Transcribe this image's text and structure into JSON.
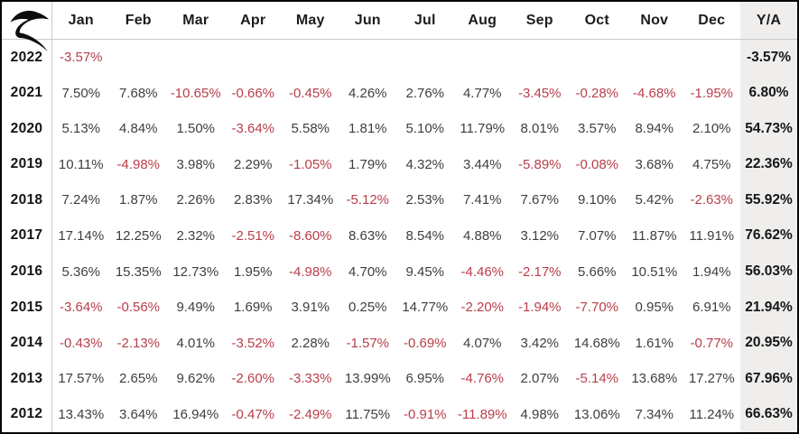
{
  "brand": {
    "logo_icon": "swoosh-r-logo"
  },
  "table": {
    "columns": [
      "Jan",
      "Feb",
      "Mar",
      "Apr",
      "May",
      "Jun",
      "Jul",
      "Aug",
      "Sep",
      "Oct",
      "Nov",
      "Dec"
    ],
    "annual_column": "Y/A",
    "rows": [
      {
        "year": "2022",
        "monthly": [
          "-3.57%",
          "",
          "",
          "",
          "",
          "",
          "",
          "",
          "",
          "",
          "",
          ""
        ],
        "annual": "-3.57%"
      },
      {
        "year": "2021",
        "monthly": [
          "7.50%",
          "7.68%",
          "-10.65%",
          "-0.66%",
          "-0.45%",
          "4.26%",
          "2.76%",
          "4.77%",
          "-3.45%",
          "-0.28%",
          "-4.68%",
          "-1.95%"
        ],
        "annual": "6.80%"
      },
      {
        "year": "2020",
        "monthly": [
          "5.13%",
          "4.84%",
          "1.50%",
          "-3.64%",
          "5.58%",
          "1.81%",
          "5.10%",
          "11.79%",
          "8.01%",
          "3.57%",
          "8.94%",
          "2.10%"
        ],
        "annual": "54.73%"
      },
      {
        "year": "2019",
        "monthly": [
          "10.11%",
          "-4.98%",
          "3.98%",
          "2.29%",
          "-1.05%",
          "1.79%",
          "4.32%",
          "3.44%",
          "-5.89%",
          "-0.08%",
          "3.68%",
          "4.75%"
        ],
        "annual": "22.36%"
      },
      {
        "year": "2018",
        "monthly": [
          "7.24%",
          "1.87%",
          "2.26%",
          "2.83%",
          "17.34%",
          "-5.12%",
          "2.53%",
          "7.41%",
          "7.67%",
          "9.10%",
          "5.42%",
          "-2.63%"
        ],
        "annual": "55.92%"
      },
      {
        "year": "2017",
        "monthly": [
          "17.14%",
          "12.25%",
          "2.32%",
          "-2.51%",
          "-8.60%",
          "8.63%",
          "8.54%",
          "4.88%",
          "3.12%",
          "7.07%",
          "11.87%",
          "11.91%"
        ],
        "annual": "76.62%"
      },
      {
        "year": "2016",
        "monthly": [
          "5.36%",
          "15.35%",
          "12.73%",
          "1.95%",
          "-4.98%",
          "4.70%",
          "9.45%",
          "-4.46%",
          "-2.17%",
          "5.66%",
          "10.51%",
          "1.94%"
        ],
        "annual": "56.03%"
      },
      {
        "year": "2015",
        "monthly": [
          "-3.64%",
          "-0.56%",
          "9.49%",
          "1.69%",
          "3.91%",
          "0.25%",
          "14.77%",
          "-2.20%",
          "-1.94%",
          "-7.70%",
          "0.95%",
          "6.91%"
        ],
        "annual": "21.94%"
      },
      {
        "year": "2014",
        "monthly": [
          "-0.43%",
          "-2.13%",
          "4.01%",
          "-3.52%",
          "2.28%",
          "-1.57%",
          "-0.69%",
          "4.07%",
          "3.42%",
          "14.68%",
          "1.61%",
          "-0.77%"
        ],
        "annual": "20.95%"
      },
      {
        "year": "2013",
        "monthly": [
          "17.57%",
          "2.65%",
          "9.62%",
          "-2.60%",
          "-3.33%",
          "13.99%",
          "6.95%",
          "-4.76%",
          "2.07%",
          "-5.14%",
          "13.68%",
          "17.27%"
        ],
        "annual": "67.96%"
      },
      {
        "year": "2012",
        "monthly": [
          "13.43%",
          "3.64%",
          "16.94%",
          "-0.47%",
          "-2.49%",
          "11.75%",
          "-0.91%",
          "-11.89%",
          "4.98%",
          "13.06%",
          "7.34%",
          "11.24%"
        ],
        "annual": "66.63%"
      }
    ]
  },
  "colors": {
    "negative_text": "#b83e4a",
    "positive_text": "#3e3e3e",
    "annual_column_bg": "#efeeec",
    "grid_line": "#c9c9c9",
    "outer_border": "#060606"
  },
  "chart_data": {
    "type": "table",
    "title": "Monthly returns by year (%)",
    "categories": [
      "Jan",
      "Feb",
      "Mar",
      "Apr",
      "May",
      "Jun",
      "Jul",
      "Aug",
      "Sep",
      "Oct",
      "Nov",
      "Dec",
      "Y/A"
    ],
    "years": [
      "2022",
      "2021",
      "2020",
      "2019",
      "2018",
      "2017",
      "2016",
      "2015",
      "2014",
      "2013",
      "2012"
    ],
    "series": [
      {
        "name": "2022",
        "values": [
          -3.57,
          null,
          null,
          null,
          null,
          null,
          null,
          null,
          null,
          null,
          null,
          null
        ],
        "annual": -3.57
      },
      {
        "name": "2021",
        "values": [
          7.5,
          7.68,
          -10.65,
          -0.66,
          -0.45,
          4.26,
          2.76,
          4.77,
          -3.45,
          -0.28,
          -4.68,
          -1.95
        ],
        "annual": 6.8
      },
      {
        "name": "2020",
        "values": [
          5.13,
          4.84,
          1.5,
          -3.64,
          5.58,
          1.81,
          5.1,
          11.79,
          8.01,
          3.57,
          8.94,
          2.1
        ],
        "annual": 54.73
      },
      {
        "name": "2019",
        "values": [
          10.11,
          -4.98,
          3.98,
          2.29,
          -1.05,
          1.79,
          4.32,
          3.44,
          -5.89,
          -0.08,
          3.68,
          4.75
        ],
        "annual": 22.36
      },
      {
        "name": "2018",
        "values": [
          7.24,
          1.87,
          2.26,
          2.83,
          17.34,
          -5.12,
          2.53,
          7.41,
          7.67,
          9.1,
          5.42,
          -2.63
        ],
        "annual": 55.92
      },
      {
        "name": "2017",
        "values": [
          17.14,
          12.25,
          2.32,
          -2.51,
          -8.6,
          8.63,
          8.54,
          4.88,
          3.12,
          7.07,
          11.87,
          11.91
        ],
        "annual": 76.62
      },
      {
        "name": "2016",
        "values": [
          5.36,
          15.35,
          12.73,
          1.95,
          -4.98,
          4.7,
          9.45,
          -4.46,
          -2.17,
          5.66,
          10.51,
          1.94
        ],
        "annual": 56.03
      },
      {
        "name": "2015",
        "values": [
          -3.64,
          -0.56,
          9.49,
          1.69,
          3.91,
          0.25,
          14.77,
          -2.2,
          -1.94,
          -7.7,
          0.95,
          6.91
        ],
        "annual": 21.94
      },
      {
        "name": "2014",
        "values": [
          -0.43,
          -2.13,
          4.01,
          -3.52,
          2.28,
          -1.57,
          -0.69,
          4.07,
          3.42,
          14.68,
          1.61,
          -0.77
        ],
        "annual": 20.95
      },
      {
        "name": "2013",
        "values": [
          17.57,
          2.65,
          9.62,
          -2.6,
          -3.33,
          13.99,
          6.95,
          -4.76,
          2.07,
          -5.14,
          13.68,
          17.27
        ],
        "annual": 67.96
      },
      {
        "name": "2012",
        "values": [
          13.43,
          3.64,
          16.94,
          -0.47,
          -2.49,
          11.75,
          -0.91,
          -11.89,
          4.98,
          13.06,
          7.34,
          11.24
        ],
        "annual": 66.63
      }
    ],
    "notes": "Negative values rendered in red; Y/A (yearly aggregate) column bold on light-gray background"
  }
}
